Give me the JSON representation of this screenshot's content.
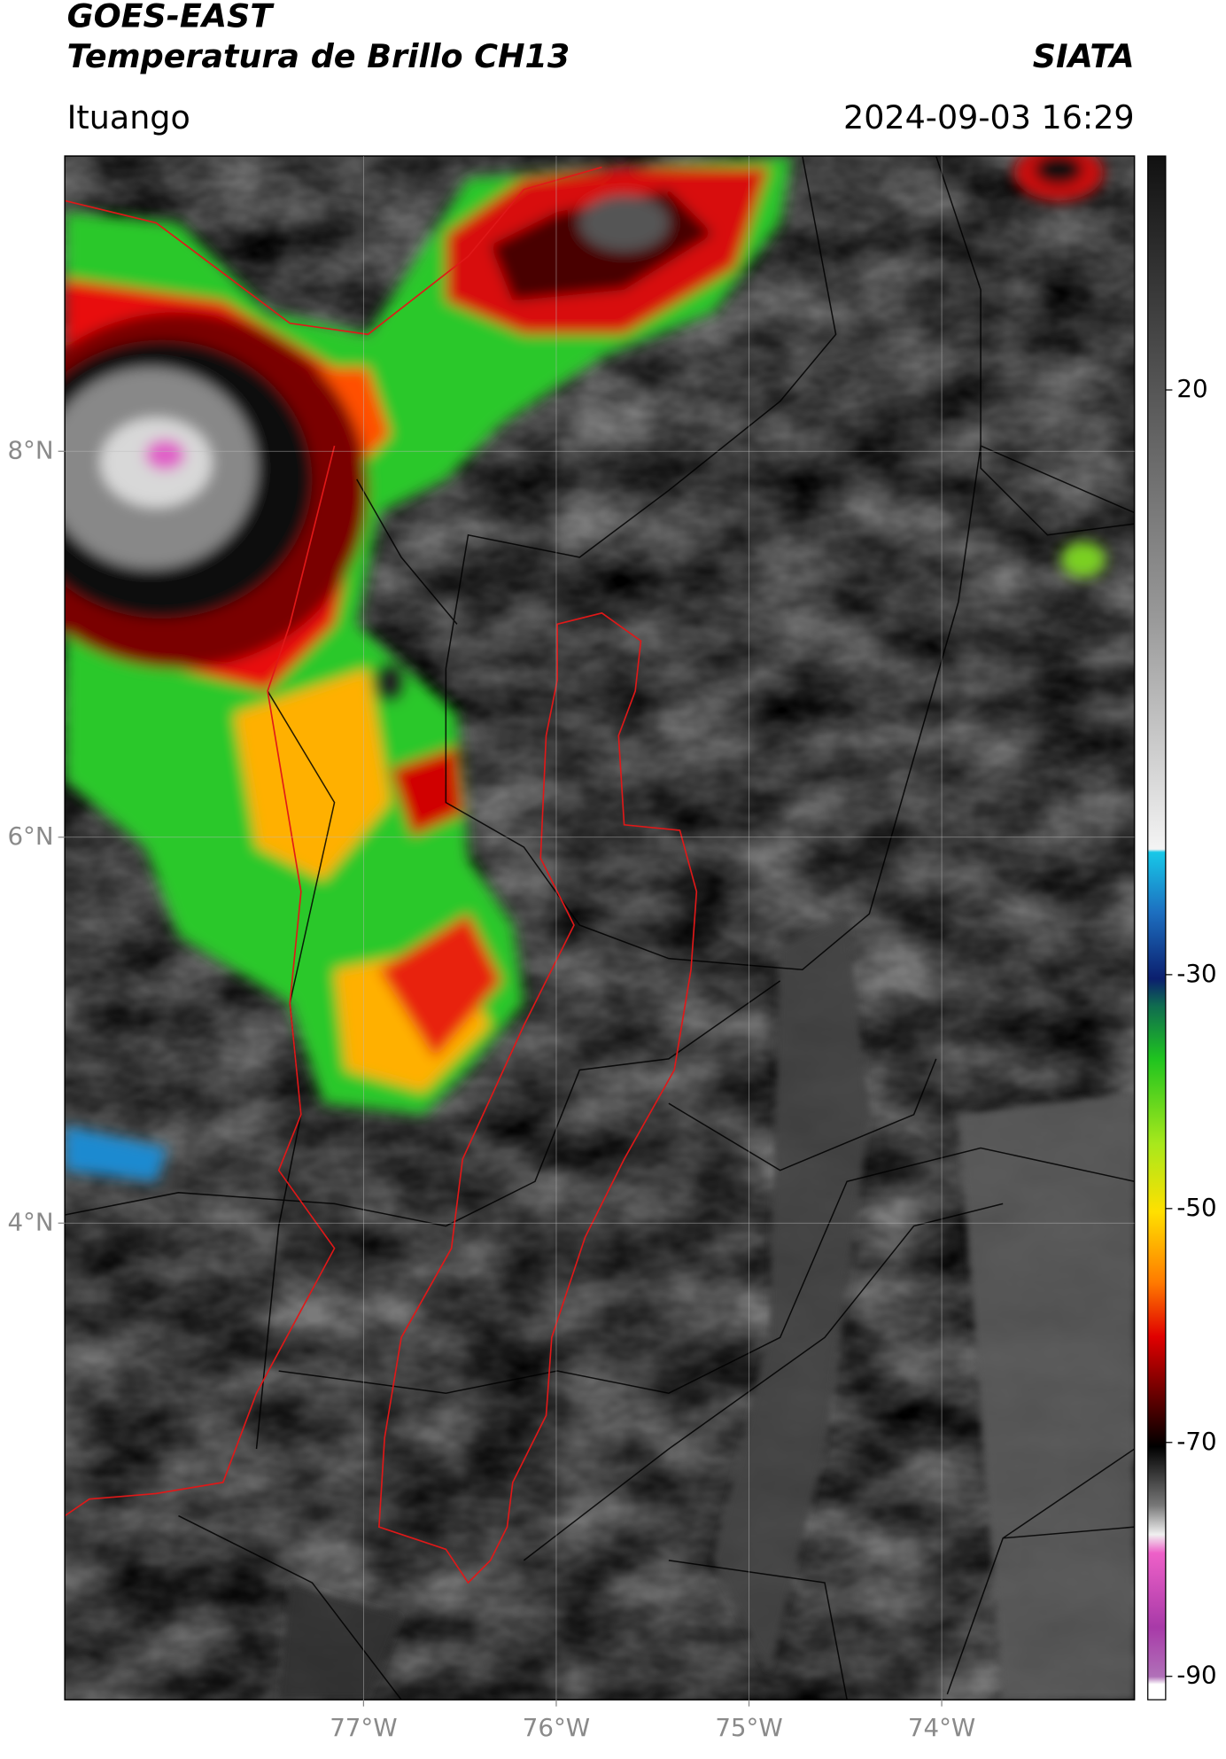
{
  "header": {
    "title": "GOES-EAST",
    "subtitle": "Temperatura de Brillo CH13",
    "source": "SIATA",
    "location": "Ituango",
    "timestamp": "2024-09-03 16:29"
  },
  "map": {
    "xlim": [
      -78.55,
      -73.0
    ],
    "ylim": [
      1.53,
      9.53
    ],
    "xticks": [
      {
        "value": -77,
        "label": "77°W"
      },
      {
        "value": -76,
        "label": "76°W"
      },
      {
        "value": -75,
        "label": "75°W"
      },
      {
        "value": -74,
        "label": "74°W"
      }
    ],
    "yticks": [
      {
        "value": 8,
        "label": "8°N"
      },
      {
        "value": 6,
        "label": "6°N"
      },
      {
        "value": 4,
        "label": "4°N"
      }
    ],
    "grid": true
  },
  "colorbar": {
    "lim": [
      -92,
      40
    ],
    "ticks": [
      20,
      -30,
      -50,
      -70,
      -90
    ]
  }
}
